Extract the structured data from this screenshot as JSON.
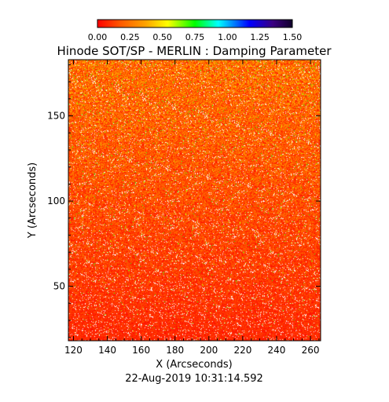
{
  "chart_data": {
    "type": "heatmap",
    "title": "Hinode SOT/SP - MERLIN : Damping Parameter",
    "xlabel": "X (Arcseconds)",
    "ylabel": "Y (Arcseconds)",
    "footer": "22-Aug-2019 10:31:14.592",
    "xlim": [
      117,
      266
    ],
    "ylim": [
      18,
      183
    ],
    "x_ticks": [
      "120",
      "140",
      "160",
      "180",
      "200",
      "220",
      "240",
      "260"
    ],
    "y_ticks": [
      "50",
      "100",
      "150"
    ],
    "colorbar": {
      "range": [
        0.0,
        1.5
      ],
      "tick_labels": [
        "0.00",
        "0.25",
        "0.50",
        "0.75",
        "1.00",
        "1.25",
        "1.50"
      ],
      "colormap": [
        "#ff0000",
        "#ff8c00",
        "#ffff00",
        "#00ff00",
        "#00ffff",
        "#0000ff",
        "#1a0040"
      ]
    },
    "field_summary": {
      "dominant_value_range": [
        0.0,
        0.3
      ],
      "upper_region_mean": 0.18,
      "lower_region_mean": 0.06,
      "missing_pixels_white": true
    }
  }
}
